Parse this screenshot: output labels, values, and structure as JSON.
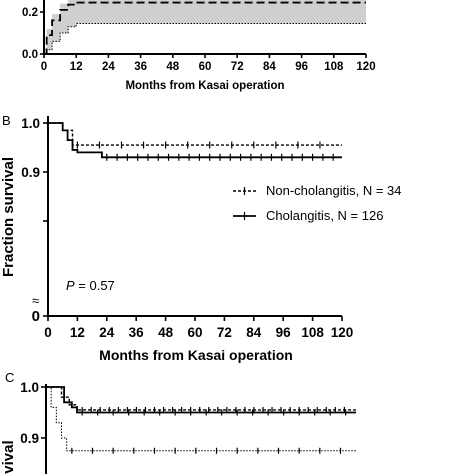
{
  "panels": {
    "a": {
      "xlabel": "Months from Kasai operation",
      "x_ticks": [
        "0",
        "12",
        "24",
        "36",
        "48",
        "60",
        "72",
        "84",
        "96",
        "108",
        "120"
      ],
      "y_ticks": [
        "0.0",
        "0.2"
      ]
    },
    "b": {
      "letter": "B",
      "xlabel": "Months from Kasai operation",
      "ylabel": "Fraction survival",
      "x_ticks": [
        "0",
        "12",
        "24",
        "36",
        "48",
        "60",
        "72",
        "84",
        "96",
        "108",
        "120"
      ],
      "y_ticks": [
        "0",
        "0.9",
        "1.0"
      ],
      "break_mark": "≈",
      "p_label": "P",
      "p_value": " = 0.57",
      "legend": [
        "Non-cholangitis, N = 34",
        "Cholangitis, N = 126"
      ]
    },
    "c": {
      "letter": "C",
      "ylabel_fragment": "rvival",
      "y_ticks": [
        "1.0",
        "0.9"
      ]
    }
  },
  "chart_data": [
    {
      "panel": "A",
      "type": "line",
      "xlabel": "Months from Kasai operation",
      "ylabel": "",
      "xlim": [
        0,
        120
      ],
      "ylim_visible": [
        0.0,
        0.25
      ],
      "series": [
        {
          "style": "dashed",
          "band": "shaded 95% CI",
          "x": [
            0,
            1,
            3,
            6,
            9,
            12,
            84,
            120
          ],
          "y": [
            0.0,
            0.09,
            0.16,
            0.21,
            0.235,
            0.245,
            0.245,
            0.245
          ],
          "band_lower": [
            0.0,
            0.02,
            0.06,
            0.1,
            0.13,
            0.145,
            0.145,
            0.145
          ]
        }
      ]
    },
    {
      "panel": "B",
      "type": "line",
      "xlabel": "Months from Kasai operation",
      "ylabel": "Fraction survival",
      "xlim": [
        0,
        120
      ],
      "ylim": [
        0.8,
        1.0
      ],
      "axis_break": true,
      "p_value": "P = 0.57",
      "series": [
        {
          "name": "Non-cholangitis, N = 34",
          "style": "dashed",
          "x": [
            0,
            5,
            6,
            10,
            120
          ],
          "y": [
            1.0,
            1.0,
            0.985,
            0.955,
            0.955
          ]
        },
        {
          "name": "Cholangitis, N = 126",
          "style": "solid",
          "x": [
            0,
            5,
            6,
            8,
            10,
            12,
            22,
            120
          ],
          "y": [
            1.0,
            1.0,
            0.985,
            0.965,
            0.945,
            0.94,
            0.93,
            0.93
          ]
        }
      ]
    },
    {
      "panel": "C",
      "type": "line",
      "xlim": [
        0,
        120
      ],
      "ylim_visible": [
        0.85,
        1.0
      ],
      "series": [
        {
          "style": "solid",
          "x": [
            0,
            7,
            10,
            12,
            120
          ],
          "y": [
            1.0,
            0.97,
            0.96,
            0.95,
            0.95
          ]
        },
        {
          "style": "dashed",
          "x": [
            0,
            6,
            9,
            12,
            120
          ],
          "y": [
            1.0,
            0.98,
            0.965,
            0.955,
            0.955
          ]
        },
        {
          "style": "dotted",
          "x": [
            0,
            2,
            4,
            6,
            8,
            120
          ],
          "y": [
            1.0,
            0.96,
            0.93,
            0.9,
            0.875,
            0.875
          ]
        }
      ]
    }
  ]
}
